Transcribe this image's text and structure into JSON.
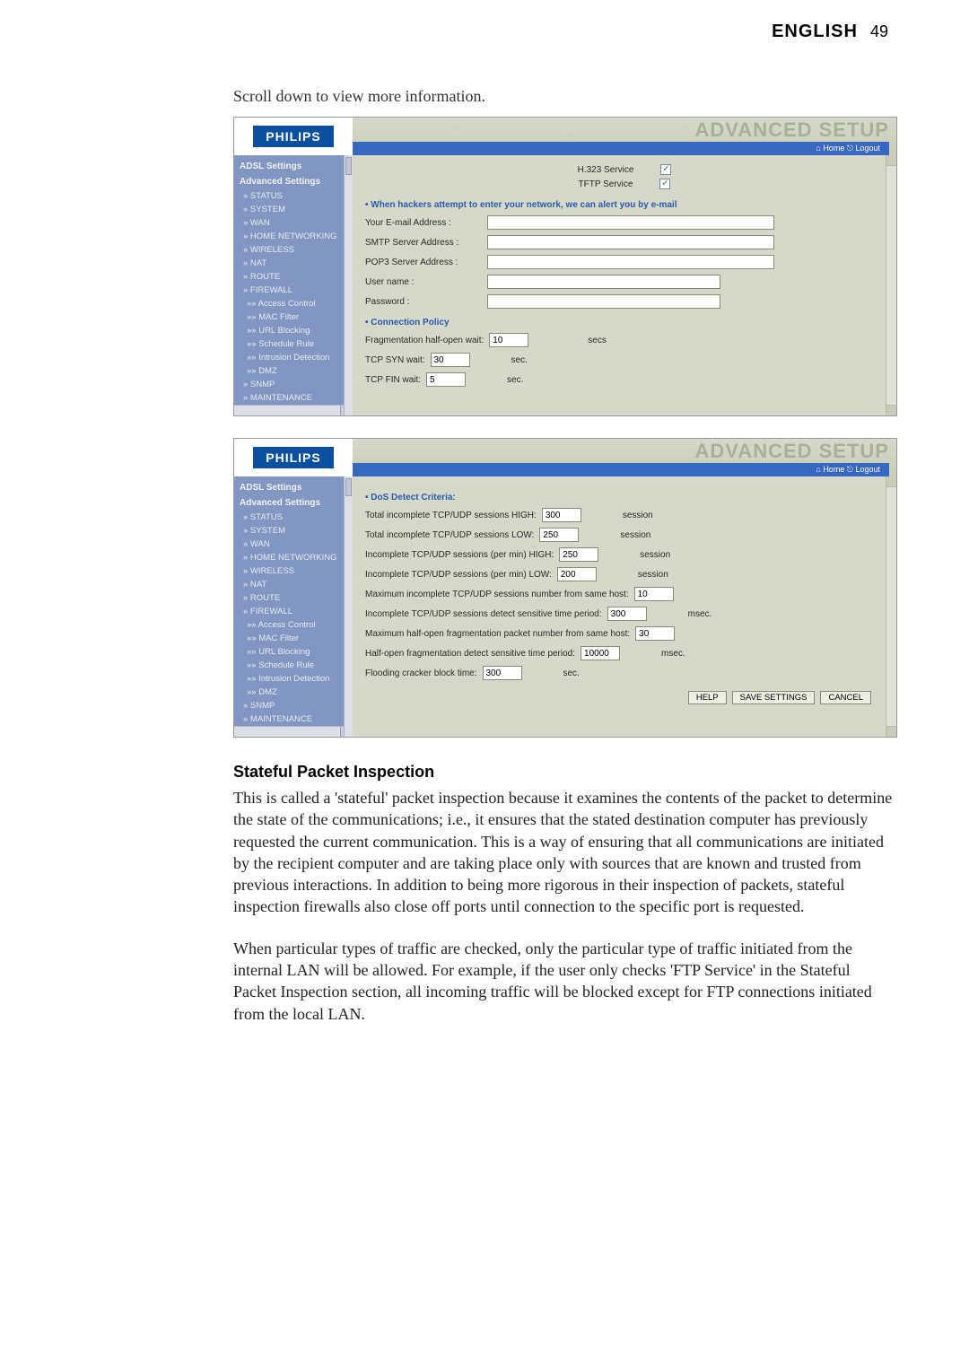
{
  "header": {
    "lang": "ENGLISH",
    "page_num": "49"
  },
  "intro": "Scroll down to view more information.",
  "brand": {
    "logo_text": "PHILIPS",
    "logo_bg": "#0a4fa0",
    "logo_fg": "#ffffff"
  },
  "topbar": {
    "title": "ADVANCED SETUP",
    "title_color": "#a9b09a",
    "links_bar_bg": "#3767c1",
    "home_label": "Home",
    "logout_label": "Logout"
  },
  "sidebar": {
    "bg": "#8295c3",
    "fg": "#e8ecf5",
    "sections": {
      "adsl": "ADSL Settings",
      "adv": "Advanced Settings"
    },
    "items": [
      "» STATUS",
      "» SYSTEM",
      "» WAN",
      "» HOME NETWORKING",
      "» WIRELESS",
      "» NAT",
      "» ROUTE",
      "» FIREWALL"
    ],
    "subitems": [
      "»» Access Control",
      "»» MAC Filter",
      "»» URL Blocking",
      "»» Schedule Rule",
      "»» Intrusion Detection",
      "»» DMZ"
    ],
    "trailing": [
      "» SNMP",
      "» MAINTENANCE"
    ]
  },
  "screenshot1": {
    "services": [
      {
        "label": "H.323 Service",
        "checked": true
      },
      {
        "label": "TFTP Service",
        "checked": true
      }
    ],
    "alert_heading": "• When hackers attempt to enter your network, we can alert you by e-mail",
    "fields": {
      "email_label": "Your E-mail Address :",
      "smtp_label": "SMTP Server Address :",
      "pop3_label": "POP3 Server Address :",
      "user_label": "User name :",
      "pass_label": "Password :"
    },
    "conn_policy_heading": "• Connection Policy",
    "conn_rows": [
      {
        "label": "Fragmentation half-open wait:",
        "value": "10",
        "unit": "secs"
      },
      {
        "label": "TCP SYN wait:",
        "value": "30",
        "unit": "sec."
      },
      {
        "label": "TCP FIN wait:",
        "value": "5",
        "unit": "sec."
      }
    ]
  },
  "screenshot2": {
    "dos_heading": "• DoS Detect Criteria:",
    "rows": [
      {
        "label": "Total incomplete TCP/UDP sessions HIGH:",
        "value": "300",
        "unit": "session"
      },
      {
        "label": "Total incomplete TCP/UDP sessions LOW:",
        "value": "250",
        "unit": "session"
      },
      {
        "label": "Incomplete TCP/UDP sessions (per min) HIGH:",
        "value": "250",
        "unit": "session"
      },
      {
        "label": "Incomplete TCP/UDP sessions (per min) LOW:",
        "value": "200",
        "unit": "session"
      },
      {
        "label": "Maximum incomplete TCP/UDP sessions number from same host:",
        "value": "10",
        "unit": ""
      },
      {
        "label": "Incomplete TCP/UDP sessions detect sensitive time period:",
        "value": "300",
        "unit": "msec."
      },
      {
        "label": "Maximum half-open fragmentation packet number from same host:",
        "value": "30",
        "unit": ""
      },
      {
        "label": "Half-open fragmentation detect sensitive time period:",
        "value": "10000",
        "unit": "msec."
      },
      {
        "label": "Flooding cracker block time:",
        "value": "300",
        "unit": "sec."
      }
    ],
    "buttons": {
      "help": "HELP",
      "save": "SAVE SETTINGS",
      "cancel": "CANCEL"
    }
  },
  "section": {
    "heading": "Stateful Packet Inspection",
    "para1": "This is called a 'stateful' packet inspection because it examines the contents of the packet to determine the state of the communications; i.e., it ensures that the stated destination computer has previously requested the current communication. This is a way of ensuring that all communications are initiated by the recipient computer and are taking place only with sources that are known and trusted from previous interactions. In addition to being more rigorous in their inspection of packets, stateful inspection firewalls also close off ports until connection to the specific port is requested.",
    "para2": "When particular types of traffic are checked, only the particular type of traffic initiated from the internal LAN will be allowed. For example, if the user only checks 'FTP Service' in the Stateful Packet Inspection section, all incoming traffic will be blocked except for FTP connections initiated from the local LAN."
  },
  "colors": {
    "page_bg": "#ffffff",
    "screenshot_bg": "#c8ccb8",
    "content_bg": "#d6d9c9",
    "sidebar_bg": "#8295c3"
  }
}
